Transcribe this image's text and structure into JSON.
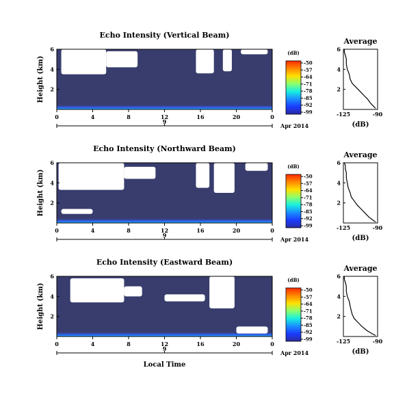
{
  "chart_data": [
    {
      "type": "heatmap",
      "title": "Echo Intensity (Vertical Beam)",
      "ylabel": "Height (km)",
      "xlabel": "",
      "x_ticks": [
        "0",
        "4",
        "8",
        "12",
        "16",
        "20",
        "0"
      ],
      "date_label": "9",
      "date_suffix": "Apr 2014",
      "xlim": [
        0,
        24
      ],
      "ylim": [
        0,
        6
      ],
      "y_ticks": [
        "2",
        "4",
        "6"
      ],
      "colorbar": {
        "unit": "(dB)",
        "ticks": [
          "-50",
          "-57",
          "-64",
          "-71",
          "-78",
          "-85",
          "-92",
          "-99"
        ]
      },
      "background_level_db": -99,
      "no_data_regions": [
        {
          "x": [
            0.5,
            5.5
          ],
          "y": [
            3.5,
            6.0
          ]
        },
        {
          "x": [
            5.5,
            9.0
          ],
          "y": [
            4.2,
            5.8
          ]
        },
        {
          "x": [
            15.5,
            17.5
          ],
          "y": [
            3.6,
            6.0
          ]
        },
        {
          "x": [
            18.5,
            19.5
          ],
          "y": [
            3.8,
            6.0
          ]
        },
        {
          "x": [
            20.5,
            23.5
          ],
          "y": [
            5.5,
            6.0
          ]
        }
      ],
      "average_profile": {
        "title": "Average",
        "xlabel": "(dB)",
        "x_ticks": [
          "-125",
          "-90"
        ],
        "y_ticks": [
          "2",
          "4",
          "6"
        ],
        "xlim": [
          -125,
          -90
        ],
        "ylim": [
          0,
          6
        ],
        "x": [
          -92,
          -94,
          -97,
          -100,
          -104,
          -108,
          -112,
          -116,
          -118,
          -119,
          -121,
          -122,
          -122,
          -123,
          -124,
          -124
        ],
        "y": [
          0.1,
          0.3,
          0.6,
          1.0,
          1.4,
          1.8,
          2.2,
          2.6,
          3.0,
          3.5,
          4.0,
          4.5,
          5.0,
          5.4,
          5.7,
          6.0
        ]
      }
    },
    {
      "type": "heatmap",
      "title": "Echo Intensity (Northward Beam)",
      "ylabel": "Height (km)",
      "xlabel": "",
      "x_ticks": [
        "0",
        "4",
        "8",
        "12",
        "16",
        "20",
        "0"
      ],
      "date_label": "9",
      "date_suffix": "Apr 2014",
      "xlim": [
        0,
        24
      ],
      "ylim": [
        0,
        6
      ],
      "y_ticks": [
        "2",
        "4",
        "6"
      ],
      "colorbar": {
        "unit": "(dB)",
        "ticks": [
          "-50",
          "-57",
          "-64",
          "-71",
          "-78",
          "-85",
          "-92",
          "-99"
        ]
      },
      "background_level_db": -99,
      "no_data_regions": [
        {
          "x": [
            0.2,
            7.5
          ],
          "y": [
            3.3,
            6.0
          ]
        },
        {
          "x": [
            7.5,
            11.0
          ],
          "y": [
            4.4,
            5.6
          ]
        },
        {
          "x": [
            0.5,
            4.0
          ],
          "y": [
            0.9,
            1.4
          ]
        },
        {
          "x": [
            15.5,
            17.0
          ],
          "y": [
            3.5,
            6.0
          ]
        },
        {
          "x": [
            17.5,
            19.8
          ],
          "y": [
            3.0,
            6.0
          ]
        },
        {
          "x": [
            21.0,
            23.5
          ],
          "y": [
            5.2,
            6.0
          ]
        }
      ],
      "average_profile": {
        "title": "Average",
        "xlabel": "(dB)",
        "x_ticks": [
          "-125",
          "-90"
        ],
        "y_ticks": [
          "2",
          "4",
          "6"
        ],
        "xlim": [
          -125,
          -90
        ],
        "ylim": [
          0,
          6
        ],
        "x": [
          -92,
          -95,
          -99,
          -103,
          -107,
          -111,
          -114,
          -117,
          -118,
          -120,
          -121,
          -122,
          -122,
          -123,
          -123,
          -124
        ],
        "y": [
          0.1,
          0.3,
          0.6,
          1.0,
          1.4,
          1.8,
          2.2,
          2.6,
          3.0,
          3.5,
          4.0,
          4.5,
          5.0,
          5.4,
          5.7,
          6.0
        ]
      }
    },
    {
      "type": "heatmap",
      "title": "Echo Intensity (Eastward Beam)",
      "ylabel": "Height (km)",
      "xlabel": "Local Time",
      "x_ticks": [
        "0",
        "4",
        "8",
        "12",
        "16",
        "20",
        "0"
      ],
      "date_label": "9",
      "date_suffix": "Apr 2014",
      "xlim": [
        0,
        24
      ],
      "ylim": [
        0,
        6
      ],
      "y_ticks": [
        "2",
        "4",
        "6"
      ],
      "colorbar": {
        "unit": "(dB)",
        "ticks": [
          "-50",
          "-57",
          "-64",
          "-71",
          "-78",
          "-85",
          "-92",
          "-99"
        ]
      },
      "background_level_db": -99,
      "no_data_regions": [
        {
          "x": [
            1.5,
            7.5
          ],
          "y": [
            3.4,
            5.8
          ]
        },
        {
          "x": [
            7.5,
            9.5
          ],
          "y": [
            4.0,
            5.0
          ]
        },
        {
          "x": [
            12.0,
            16.5
          ],
          "y": [
            3.5,
            4.2
          ]
        },
        {
          "x": [
            17.0,
            19.8
          ],
          "y": [
            2.8,
            6.0
          ]
        },
        {
          "x": [
            20.0,
            23.5
          ],
          "y": [
            0.3,
            1.0
          ]
        }
      ],
      "average_profile": {
        "title": "Average",
        "xlabel": "(dB)",
        "x_ticks": [
          "-125",
          "-90"
        ],
        "y_ticks": [
          "2",
          "4",
          "6"
        ],
        "xlim": [
          -125,
          -90
        ],
        "ylim": [
          0,
          6
        ],
        "x": [
          -92,
          -96,
          -101,
          -106,
          -110,
          -114,
          -116,
          -117,
          -118,
          -119,
          -121,
          -122,
          -122,
          -123,
          -124,
          -124
        ],
        "y": [
          0.1,
          0.3,
          0.6,
          1.0,
          1.4,
          1.8,
          2.2,
          2.6,
          3.0,
          3.5,
          4.0,
          4.5,
          5.0,
          5.4,
          5.7,
          6.0
        ]
      }
    }
  ]
}
